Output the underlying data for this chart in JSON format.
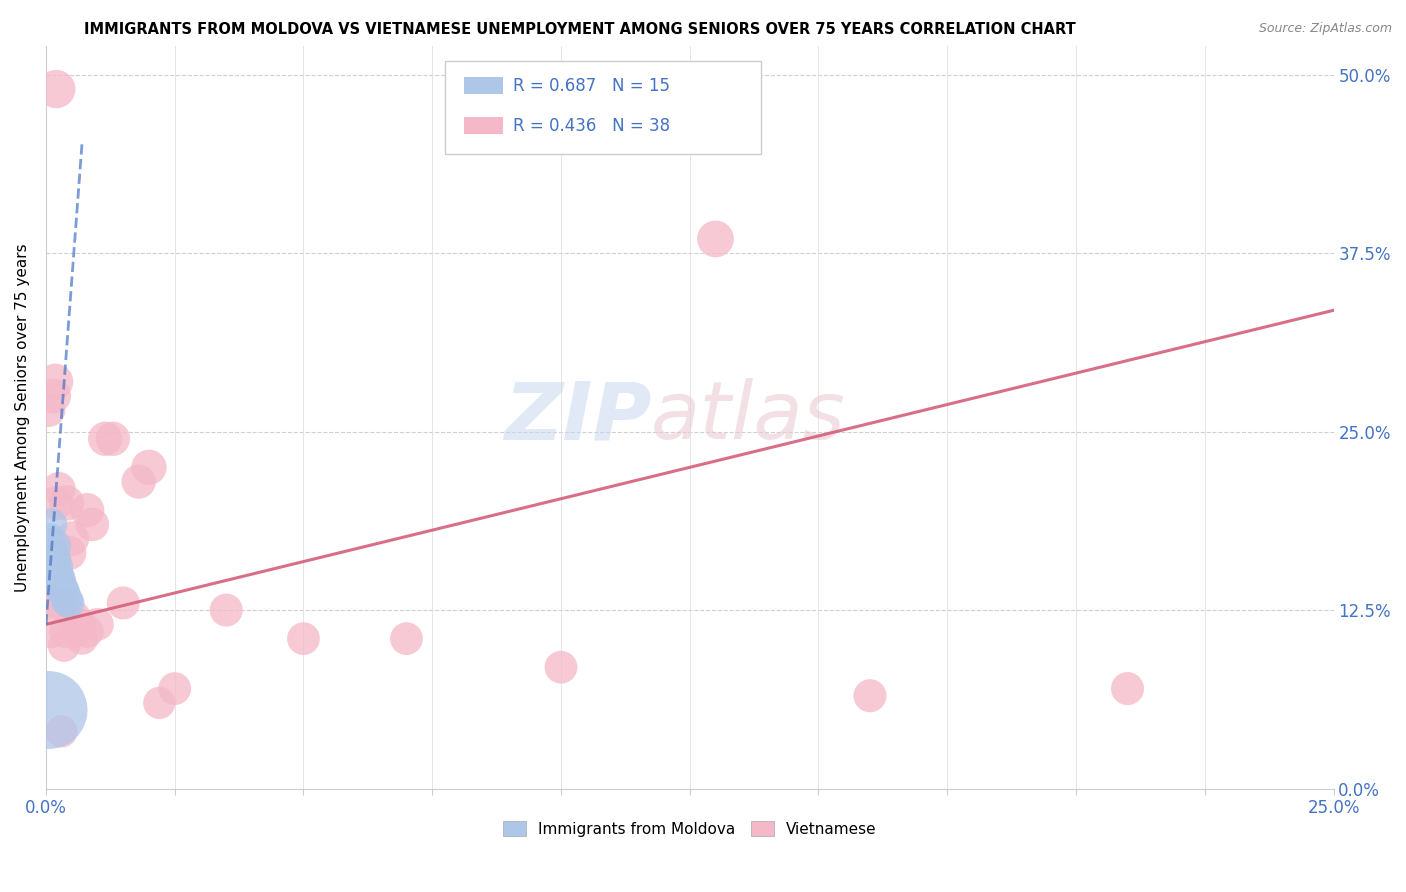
{
  "title": "IMMIGRANTS FROM MOLDOVA VS VIETNAMESE UNEMPLOYMENT AMONG SENIORS OVER 75 YEARS CORRELATION CHART",
  "source": "Source: ZipAtlas.com",
  "ylabel_label": "Unemployment Among Seniors over 75 years",
  "legend_label1": "Immigrants from Moldova",
  "legend_label2": "Vietnamese",
  "r1": 0.687,
  "n1": 15,
  "r2": 0.436,
  "n2": 38,
  "moldova_color": "#aec6e8",
  "vietnamese_color": "#f4b8c8",
  "moldova_line_color": "#4472c4",
  "vietnamese_line_color": "#d45f7a",
  "xlim": [
    0.0,
    0.25
  ],
  "ylim": [
    0.0,
    0.52
  ],
  "xtick_positions": [
    0.0,
    0.25
  ],
  "xtick_labels": [
    "0.0%",
    "25.0%"
  ],
  "ytick_positions": [
    0.0,
    0.125,
    0.25,
    0.375,
    0.5
  ],
  "ytick_labels": [
    "0.0%",
    "12.5%",
    "25.0%",
    "37.5%",
    "50.0%"
  ],
  "moldova_x": [
    0.0008,
    0.001,
    0.0012,
    0.0015,
    0.0018,
    0.002,
    0.0022,
    0.0025,
    0.0028,
    0.003,
    0.0035,
    0.0038,
    0.004,
    0.0045,
    0.0005
  ],
  "moldova_y": [
    0.175,
    0.185,
    0.165,
    0.17,
    0.16,
    0.155,
    0.15,
    0.148,
    0.145,
    0.14,
    0.138,
    0.135,
    0.132,
    0.13,
    0.055
  ],
  "moldova_size": [
    55,
    60,
    65,
    70,
    60,
    65,
    55,
    60,
    58,
    62,
    58,
    56,
    60,
    55,
    350
  ],
  "vietnamese_x": [
    0.0005,
    0.0008,
    0.001,
    0.0015,
    0.0018,
    0.002,
    0.0025,
    0.0028,
    0.003,
    0.0035,
    0.0038,
    0.004,
    0.0045,
    0.005,
    0.0055,
    0.006,
    0.0065,
    0.007,
    0.008,
    0.009,
    0.01,
    0.0115,
    0.013,
    0.015,
    0.018,
    0.02,
    0.022,
    0.025,
    0.035,
    0.05,
    0.07,
    0.1,
    0.13,
    0.16,
    0.003,
    0.002,
    0.21,
    0.008
  ],
  "vietnamese_y": [
    0.265,
    0.13,
    0.11,
    0.275,
    0.285,
    0.2,
    0.21,
    0.13,
    0.14,
    0.1,
    0.11,
    0.2,
    0.165,
    0.175,
    0.12,
    0.11,
    0.115,
    0.105,
    0.195,
    0.185,
    0.115,
    0.245,
    0.245,
    0.13,
    0.215,
    0.225,
    0.06,
    0.07,
    0.125,
    0.105,
    0.105,
    0.085,
    0.385,
    0.065,
    0.04,
    0.49,
    0.07,
    0.11
  ],
  "vietnamese_size": [
    65,
    60,
    65,
    70,
    75,
    68,
    65,
    62,
    65,
    60,
    63,
    72,
    68,
    70,
    63,
    60,
    62,
    60,
    68,
    65,
    62,
    68,
    68,
    63,
    68,
    72,
    60,
    62,
    63,
    62,
    62,
    62,
    78,
    63,
    60,
    85,
    63,
    63
  ]
}
